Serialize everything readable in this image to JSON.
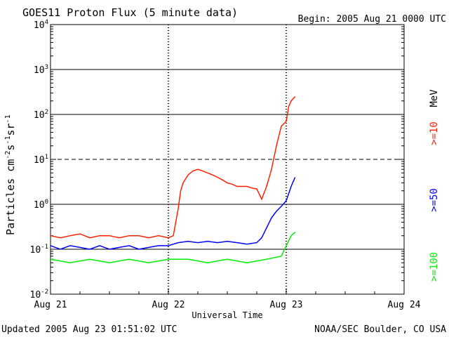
{
  "chart_data": {
    "type": "line",
    "title": "GOES11 Proton Flux (5 minute data)",
    "begin_label": "Begin: 2005 Aug 21 0000 UTC",
    "xlabel": "Universal Time",
    "ylabel_parts": [
      "Particles cm",
      "-2",
      "s",
      "-1",
      "sr",
      "-1"
    ],
    "y_scale": "log",
    "ylim": [
      0.01,
      10000
    ],
    "xlim": [
      0,
      72
    ],
    "x_ticks": [
      {
        "hours": 0,
        "label": "Aug 21"
      },
      {
        "hours": 24,
        "label": "Aug 22"
      },
      {
        "hours": 48,
        "label": "Aug 23"
      },
      {
        "hours": 72,
        "label": "Aug 24"
      }
    ],
    "y_ticks": [
      {
        "value": 0.01,
        "base": "10",
        "exp": "-2"
      },
      {
        "value": 0.1,
        "base": "10",
        "exp": "-1"
      },
      {
        "value": 1,
        "base": "10",
        "exp": "0"
      },
      {
        "value": 10,
        "base": "10",
        "exp": "1"
      },
      {
        "value": 100,
        "base": "10",
        "exp": "2"
      },
      {
        "value": 1000,
        "base": "10",
        "exp": "3"
      },
      {
        "value": 10000,
        "base": "10",
        "exp": "4"
      }
    ],
    "threshold_lines": [
      0.1,
      1,
      10,
      100,
      1000
    ],
    "unit_label": "MeV",
    "series": [
      {
        "name": ">=10",
        "color": "#ff2000",
        "points": [
          [
            0,
            0.2
          ],
          [
            2,
            0.18
          ],
          [
            4,
            0.2
          ],
          [
            6,
            0.22
          ],
          [
            8,
            0.18
          ],
          [
            10,
            0.2
          ],
          [
            12,
            0.2
          ],
          [
            14,
            0.18
          ],
          [
            16,
            0.2
          ],
          [
            18,
            0.2
          ],
          [
            20,
            0.18
          ],
          [
            22,
            0.2
          ],
          [
            24,
            0.18
          ],
          [
            25,
            0.2
          ],
          [
            26,
            0.8
          ],
          [
            26.5,
            2
          ],
          [
            27,
            3
          ],
          [
            28,
            4.5
          ],
          [
            29,
            5.5
          ],
          [
            30,
            6
          ],
          [
            31,
            5.5
          ],
          [
            32,
            5
          ],
          [
            33,
            4.5
          ],
          [
            34,
            4
          ],
          [
            35,
            3.5
          ],
          [
            36,
            3
          ],
          [
            37,
            2.8
          ],
          [
            38,
            2.5
          ],
          [
            39,
            2.5
          ],
          [
            40,
            2.5
          ],
          [
            41,
            2.3
          ],
          [
            42,
            2.2
          ],
          [
            43,
            1.3
          ],
          [
            44,
            2.5
          ],
          [
            45,
            6
          ],
          [
            46,
            20
          ],
          [
            47,
            55
          ],
          [
            48,
            70
          ],
          [
            48.5,
            150
          ],
          [
            49,
            200
          ],
          [
            49.8,
            250
          ]
        ]
      },
      {
        "name": ">=50",
        "color": "#0000ff",
        "points": [
          [
            0,
            0.12
          ],
          [
            2,
            0.1
          ],
          [
            4,
            0.12
          ],
          [
            6,
            0.11
          ],
          [
            8,
            0.1
          ],
          [
            10,
            0.12
          ],
          [
            12,
            0.1
          ],
          [
            14,
            0.11
          ],
          [
            16,
            0.12
          ],
          [
            18,
            0.1
          ],
          [
            20,
            0.11
          ],
          [
            22,
            0.12
          ],
          [
            24,
            0.12
          ],
          [
            26,
            0.14
          ],
          [
            28,
            0.15
          ],
          [
            30,
            0.14
          ],
          [
            32,
            0.15
          ],
          [
            34,
            0.14
          ],
          [
            36,
            0.15
          ],
          [
            38,
            0.14
          ],
          [
            40,
            0.13
          ],
          [
            42,
            0.14
          ],
          [
            43,
            0.18
          ],
          [
            44,
            0.3
          ],
          [
            45,
            0.5
          ],
          [
            46,
            0.7
          ],
          [
            47,
            0.9
          ],
          [
            48,
            1.2
          ],
          [
            49,
            2.5
          ],
          [
            49.8,
            4
          ]
        ]
      },
      {
        "name": ">=100",
        "color": "#00ee00",
        "points": [
          [
            0,
            0.06
          ],
          [
            4,
            0.05
          ],
          [
            8,
            0.06
          ],
          [
            12,
            0.05
          ],
          [
            16,
            0.06
          ],
          [
            20,
            0.05
          ],
          [
            24,
            0.06
          ],
          [
            28,
            0.06
          ],
          [
            32,
            0.05
          ],
          [
            36,
            0.06
          ],
          [
            40,
            0.05
          ],
          [
            44,
            0.06
          ],
          [
            47,
            0.07
          ],
          [
            48,
            0.12
          ],
          [
            49,
            0.2
          ],
          [
            49.8,
            0.24
          ]
        ]
      }
    ]
  },
  "footer": {
    "updated": "Updated 2005 Aug 23 01:51:02 UTC",
    "source": "NOAA/SEC Boulder, CO USA"
  }
}
